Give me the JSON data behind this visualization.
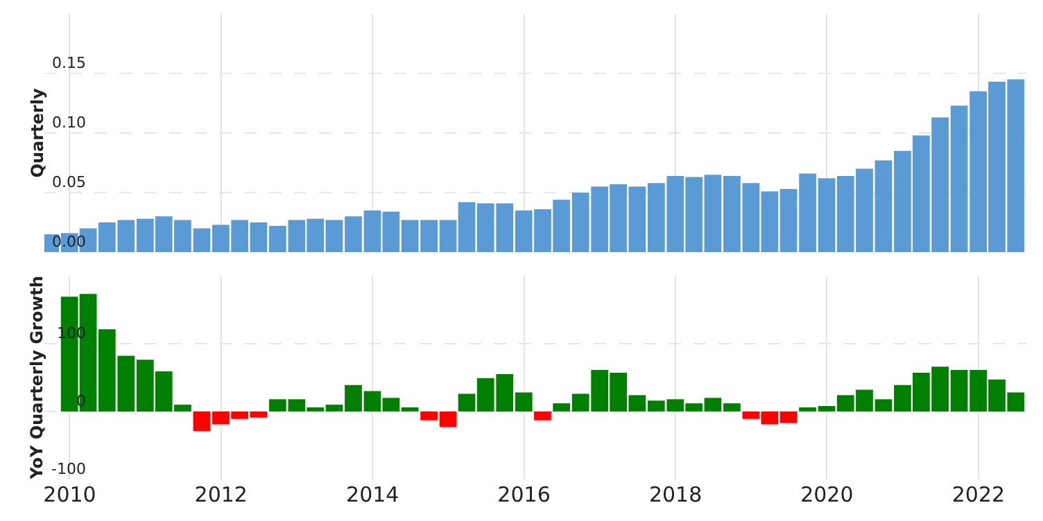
{
  "chart_data": [
    {
      "type": "bar",
      "ylabel": "Quarterly",
      "color": "#5b9bd5",
      "grid": true,
      "tick_labels": "y",
      "x": [
        "2009-09-30",
        "2009-12-31",
        "2010-03-31",
        "2010-06-30",
        "2010-09-30",
        "2010-12-31",
        "2011-03-31",
        "2011-06-30",
        "2011-09-30",
        "2011-12-31",
        "2012-03-31",
        "2012-06-30",
        "2012-09-30",
        "2012-12-31",
        "2013-03-31",
        "2013-06-30",
        "2013-09-30",
        "2013-12-31",
        "2014-03-31",
        "2014-06-30",
        "2014-09-30",
        "2014-12-31",
        "2015-03-31",
        "2015-06-30",
        "2015-09-30",
        "2015-12-31",
        "2016-03-31",
        "2016-06-30",
        "2016-09-30",
        "2016-12-31",
        "2017-03-31",
        "2017-06-30",
        "2017-09-30",
        "2017-12-31",
        "2018-03-31",
        "2018-06-30",
        "2018-09-30",
        "2018-12-31",
        "2019-03-31",
        "2019-06-30",
        "2019-09-30",
        "2019-12-31",
        "2020-03-31",
        "2020-06-30",
        "2020-09-30",
        "2020-12-31",
        "2021-03-31",
        "2021-06-30",
        "2021-09-30",
        "2021-12-31",
        "2022-03-31",
        "2022-06-30"
      ],
      "values": [
        0.015,
        0.016,
        0.02,
        0.025,
        0.027,
        0.028,
        0.03,
        0.027,
        0.02,
        0.023,
        0.027,
        0.025,
        0.022,
        0.027,
        0.028,
        0.027,
        0.03,
        0.035,
        0.034,
        0.027,
        0.027,
        0.027,
        0.042,
        0.041,
        0.041,
        0.035,
        0.036,
        0.044,
        0.05,
        0.055,
        0.057,
        0.055,
        0.058,
        0.064,
        0.063,
        0.065,
        0.064,
        0.058,
        0.051,
        0.053,
        0.066,
        0.062,
        0.064,
        0.07,
        0.077,
        0.085,
        0.098,
        0.113,
        0.123,
        0.135,
        0.143,
        0.145
      ],
      "xlim": [
        "2009-09-01",
        "2022-08-20"
      ],
      "xticks": [
        "2010",
        "2012",
        "2014",
        "2016",
        "2018",
        "2020",
        "2022"
      ],
      "ylim": [
        0,
        0.2
      ],
      "yticks": [
        {
          "value": 0,
          "label": "0.00"
        },
        {
          "value": 0.05,
          "label": "0.05"
        },
        {
          "value": 0.1,
          "label": "0.10"
        },
        {
          "value": 0.15,
          "label": "0.15"
        }
      ]
    },
    {
      "type": "bar",
      "ylabel": "YoY Quarterly Growth",
      "grid": true,
      "x": [
        "2009-12-31",
        "2010-03-31",
        "2010-06-30",
        "2010-09-30",
        "2010-12-31",
        "2011-03-31",
        "2011-06-30",
        "2011-09-30",
        "2011-12-31",
        "2012-03-31",
        "2012-06-30",
        "2012-09-30",
        "2012-12-31",
        "2013-03-31",
        "2013-06-30",
        "2013-09-30",
        "2013-12-31",
        "2014-03-31",
        "2014-06-30",
        "2014-09-30",
        "2014-12-31",
        "2015-03-31",
        "2015-06-30",
        "2015-09-30",
        "2015-12-31",
        "2016-03-31",
        "2016-06-30",
        "2016-09-30",
        "2016-12-31",
        "2017-03-31",
        "2017-06-30",
        "2017-09-30",
        "2017-12-31",
        "2018-03-31",
        "2018-06-30",
        "2018-09-30",
        "2018-12-31",
        "2019-03-31",
        "2019-06-30",
        "2019-09-30",
        "2019-12-31",
        "2020-03-31",
        "2020-06-30",
        "2020-09-30",
        "2020-12-31",
        "2021-03-31",
        "2021-06-30",
        "2021-09-30",
        "2021-12-31",
        "2022-03-31",
        "2022-06-30"
      ],
      "values": [
        169,
        173,
        121,
        82,
        76,
        59,
        10,
        -29,
        -19,
        -11,
        -9,
        18,
        18,
        6,
        10,
        39,
        30,
        20,
        6,
        -13,
        -23,
        26,
        49,
        55,
        28,
        -13,
        12,
        26,
        61,
        57,
        24,
        16,
        18,
        12,
        20,
        12,
        -11,
        -19,
        -17,
        6,
        8,
        24,
        32,
        18,
        39,
        57,
        66,
        61,
        61,
        47,
        28
      ],
      "colors": [
        "#008000",
        "#008000",
        "#008000",
        "#008000",
        "#008000",
        "#008000",
        "#008000",
        "#ff0000",
        "#ff0000",
        "#ff0000",
        "#ff0000",
        "#008000",
        "#008000",
        "#008000",
        "#008000",
        "#008000",
        "#008000",
        "#008000",
        "#008000",
        "#ff0000",
        "#ff0000",
        "#008000",
        "#008000",
        "#008000",
        "#008000",
        "#ff0000",
        "#008000",
        "#008000",
        "#008000",
        "#008000",
        "#008000",
        "#008000",
        "#008000",
        "#008000",
        "#008000",
        "#008000",
        "#ff0000",
        "#ff0000",
        "#ff0000",
        "#008000",
        "#008000",
        "#008000",
        "#008000",
        "#008000",
        "#008000",
        "#008000",
        "#008000",
        "#008000",
        "#008000",
        "#008000",
        "#008000"
      ],
      "xlim": [
        "2009-09-01",
        "2022-08-20"
      ],
      "xticks": [
        "2010",
        "2012",
        "2014",
        "2016",
        "2018",
        "2020",
        "2022"
      ],
      "ylim": [
        -100,
        200
      ],
      "yticks": [
        -100,
        0,
        100
      ]
    }
  ]
}
